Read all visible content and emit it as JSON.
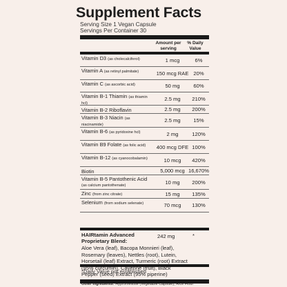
{
  "title": "Supplement Facts",
  "serving_size": "Serving Size 1 Vegan Capsule",
  "servings_per_container": "Servings Per Container 30",
  "header": {
    "amount": "Amount per serving",
    "dv": "% Daily Value"
  },
  "nutrients": [
    {
      "name": "Vitamin D3",
      "detail": "(as cholecalciferol)",
      "amount": "1 mcg",
      "dv": "6%"
    },
    {
      "name": "Vitamin A",
      "detail": "(as retinyl palmitate)",
      "amount": "150 mcg RAE",
      "dv": "20%"
    },
    {
      "name": "Vitamin C",
      "detail": "(as ascorbic acid)",
      "amount": "50 mg",
      "dv": "60%"
    },
    {
      "name": "Vitamin B-1 Thiamin",
      "detail": "(as thiamin hcl)",
      "amount": "2.5 mg",
      "dv": "210%"
    },
    {
      "name": "Vitamin B-2 Riboflavin",
      "detail": "",
      "amount": "2.5 mg",
      "dv": "200%"
    },
    {
      "name": "Vitamin B-3 Niacin",
      "detail": "(as niacinamide)",
      "amount": "2.5 mg",
      "dv": "15%"
    },
    {
      "name": "Vitamin B-6",
      "detail": "(as pyridoxine hcl)",
      "amount": "2 mg",
      "dv": "120%"
    },
    {
      "name": "Vitamin B9 Folate",
      "detail": "(as folic acid)",
      "amount": "400 mcg DFE",
      "dv": "100%"
    },
    {
      "name": "Vitamin B-12",
      "detail": "(as cyanocobalamin)",
      "amount": "10 mcg",
      "dv": "420%"
    },
    {
      "name": "Biotin",
      "detail": "",
      "amount": "5,000 mcg",
      "dv": "16,670%"
    },
    {
      "name": "Vitamin B-5 Pantothenic Acid",
      "detail": "(as calcium pantothenate)",
      "amount": "10 mg",
      "dv": "200%"
    },
    {
      "name": "Zinc",
      "detail": "(from zinc citrate)",
      "amount": "15 mg",
      "dv": "135%"
    },
    {
      "name": "Selenium",
      "detail": "(from sodium selenate)",
      "amount": "70 mcg",
      "dv": "130%"
    }
  ],
  "blend": {
    "name_line1": "HAIRtamin Advanced",
    "name_line2": "Proprietary Blend:",
    "amount": "242 mg",
    "dv": "*",
    "desc_lines": [
      "Aloe Vera (leaf), Bacopa Monnieri (leaf),",
      "Rosemary (leaves), Nettles (root), Lutein,",
      "Horsetail (leaf) Extract, Turmeric (root) Extract",
      "(95% curcumin), Cayenne (fruit), Black",
      "Pepper (seed) Extract (95% piperine)"
    ]
  },
  "footnote": "*Daily Value not established",
  "other_label": "Other Ingredients:",
  "other_text": " Hypromellose (Vegetable Capsule), Rice Flour"
}
